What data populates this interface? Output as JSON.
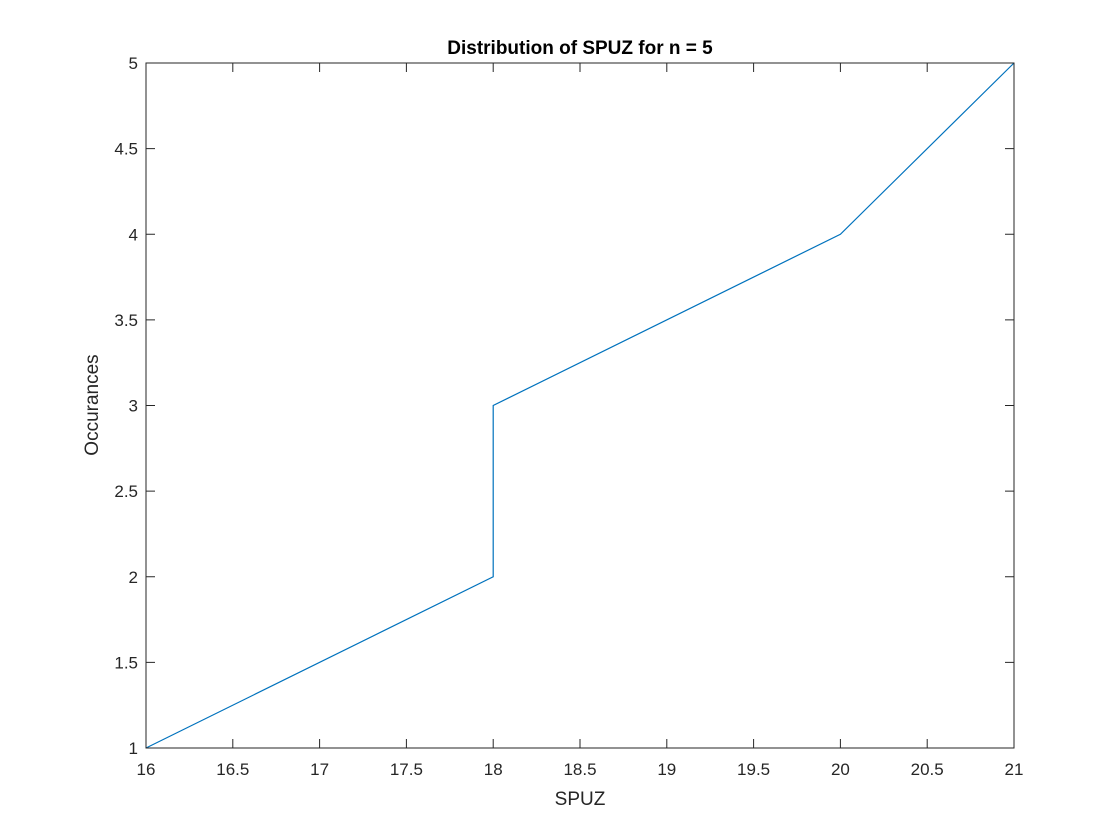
{
  "chart_data": {
    "type": "line",
    "title": "Distribution of SPUZ for n = 5",
    "xlabel": "SPUZ",
    "ylabel": "Occurances",
    "xlim": [
      16,
      21
    ],
    "ylim": [
      1,
      5
    ],
    "xticks": [
      16,
      16.5,
      17,
      17.5,
      18,
      18.5,
      19,
      19.5,
      20,
      20.5,
      21
    ],
    "xtick_labels": [
      "16",
      "16.5",
      "17",
      "17.5",
      "18",
      "18.5",
      "19",
      "19.5",
      "20",
      "20.5",
      "21"
    ],
    "yticks": [
      1,
      1.5,
      2,
      2.5,
      3,
      3.5,
      4,
      4.5,
      5
    ],
    "ytick_labels": [
      "1",
      "1.5",
      "2",
      "2.5",
      "3",
      "3.5",
      "4",
      "4.5",
      "5"
    ],
    "grid": false,
    "legend": "none",
    "series": [
      {
        "x": [
          16,
          18,
          18,
          20,
          21
        ],
        "y": [
          1,
          2,
          3,
          4,
          5
        ],
        "color": "#0072BD"
      }
    ]
  }
}
